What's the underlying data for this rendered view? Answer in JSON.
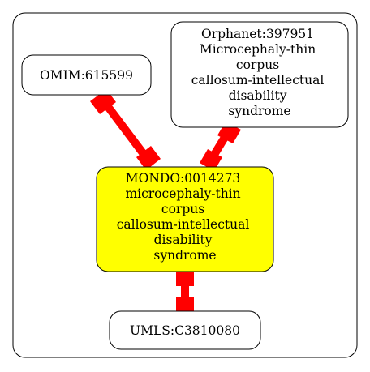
{
  "colors": {
    "edge": "#ff0000",
    "central_fill": "#ffff00",
    "node_fill": "#ffffff",
    "stroke": "#000000"
  },
  "nodes": {
    "omim": {
      "lines": [
        "OMIM:615599"
      ]
    },
    "orphanet": {
      "lines": [
        "Orphanet:397951",
        "Microcephaly-thin",
        "corpus",
        "callosum-intellectual",
        "disability",
        "syndrome"
      ]
    },
    "mondo": {
      "lines": [
        "MONDO:0014273",
        "microcephaly-thin",
        "corpus",
        "callosum-intellectual",
        "disability",
        "syndrome"
      ]
    },
    "umls": {
      "lines": [
        "UMLS:C3810080"
      ]
    }
  }
}
